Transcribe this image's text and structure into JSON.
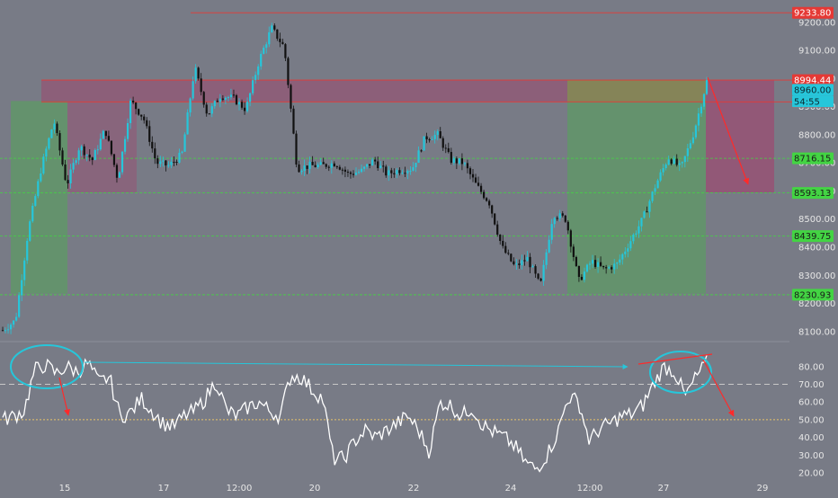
{
  "colors": {
    "background": "#787b86",
    "up": "#26c6da",
    "down": "#111111",
    "rsi_line": "#ffffff",
    "resistance": "#e53935",
    "support": "#43d443",
    "green_zone": "#4caf50",
    "red_zone": "#c2185b",
    "olive_zone": "#8d8a3a",
    "annotation_blue": "#26c6da",
    "annotation_red": "#ff2a2a",
    "price_badge": "#26c6da"
  },
  "chart_data": [
    {
      "type": "candlestick",
      "title": "",
      "y_axis": {
        "ticks": [
          "9200.00",
          "9100.00",
          "9000.00",
          "8900.00",
          "8800.00",
          "8700.00",
          "8600.00",
          "8500.00",
          "8400.00",
          "8300.00",
          "8200.00",
          "8100.00"
        ],
        "range": [
          8090,
          9260
        ]
      },
      "x_axis": {
        "ticks": [
          "15",
          "17",
          "12:00",
          "20",
          "22",
          "24",
          "12:00",
          "27",
          "29"
        ]
      },
      "price_path": [
        8105,
        8140,
        8460,
        8680,
        8850,
        8620,
        8760,
        8710,
        8820,
        8640,
        8920,
        8860,
        8700,
        8690,
        8730,
        9040,
        8870,
        8940,
        8930,
        8890,
        9060,
        9180,
        9110,
        8680,
        8690,
        8690,
        8700,
        8660,
        8670,
        8710,
        8660,
        8675,
        8680,
        8790,
        8800,
        8710,
        8700,
        8620,
        8560,
        8400,
        8330,
        8360,
        8260,
        8520,
        8500,
        8280,
        8350,
        8320,
        8340,
        8420,
        8500,
        8620,
        8720,
        8680,
        8810,
        8990
      ],
      "levels": [
        {
          "label": "9233.80",
          "value": 9233.8,
          "kind": "resistance"
        },
        {
          "label": "8994.44",
          "value": 8994.44,
          "kind": "resistance"
        },
        {
          "label": "8916.99",
          "value": 8916.99,
          "kind": "resistance"
        },
        {
          "label": "8716.15",
          "value": 8716.15,
          "kind": "support"
        },
        {
          "label": "8593.13",
          "value": 8593.13,
          "kind": "support"
        },
        {
          "label": "8439.75",
          "value": 8439.75,
          "kind": "support"
        },
        {
          "label": "8230.93",
          "value": 8230.93,
          "kind": "support"
        }
      ],
      "last_price": {
        "label": "8960.00",
        "value": 8960,
        "countdown": "54:55"
      }
    },
    {
      "type": "line",
      "title": "",
      "series_name": "",
      "y_axis": {
        "ticks": [
          "80.00",
          "70.00",
          "60.00",
          "50.00",
          "40.00",
          "30.00",
          "20.00"
        ],
        "range": [
          17,
          88
        ]
      },
      "reference_lines": [
        70,
        50
      ],
      "rsi_path": [
        50,
        52,
        55,
        78,
        81,
        76,
        80,
        77,
        82,
        71,
        74,
        52,
        54,
        62,
        55,
        48,
        46,
        52,
        55,
        62,
        72,
        55,
        52,
        57,
        60,
        55,
        52,
        75,
        74,
        67,
        62,
        28,
        28,
        38,
        44,
        40,
        44,
        48,
        52,
        44,
        32,
        60,
        58,
        52,
        57,
        47,
        43,
        40,
        35,
        26,
        22,
        30,
        42,
        63,
        60,
        38,
        45,
        48,
        52,
        53,
        58,
        70,
        80,
        77,
        63,
        74,
        82
      ]
    }
  ]
}
